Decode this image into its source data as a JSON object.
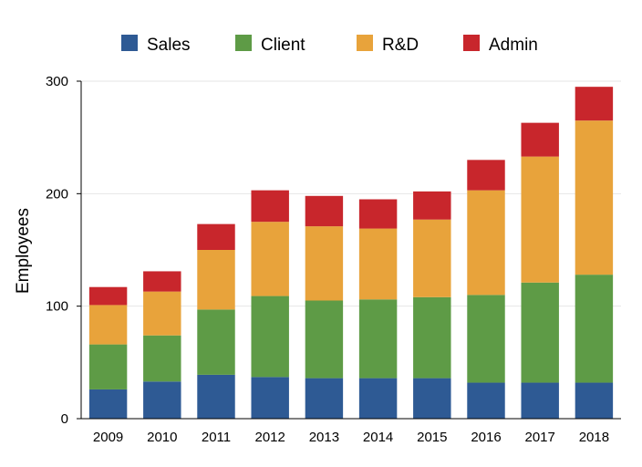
{
  "chart_data": {
    "type": "bar",
    "stacked": true,
    "title": "",
    "xlabel": "",
    "ylabel": "Employees",
    "ylim": [
      0,
      300
    ],
    "yticks": [
      0,
      100,
      200,
      300
    ],
    "grid": true,
    "legend_position": "top",
    "categories": [
      "2009",
      "2010",
      "2011",
      "2012",
      "2013",
      "2014",
      "2015",
      "2016",
      "2017",
      "2018"
    ],
    "series": [
      {
        "name": "Sales",
        "color": "#2e5a94",
        "values": [
          26,
          33,
          39,
          37,
          36,
          36,
          36,
          32,
          32,
          32
        ]
      },
      {
        "name": "Client",
        "color": "#5e9b46",
        "values": [
          40,
          41,
          58,
          72,
          69,
          70,
          72,
          78,
          89,
          96
        ]
      },
      {
        "name": "R&D",
        "color": "#e8a33b",
        "values": [
          35,
          39,
          53,
          66,
          66,
          63,
          69,
          93,
          112,
          137
        ]
      },
      {
        "name": "Admin",
        "color": "#c8262c",
        "values": [
          16,
          18,
          23,
          28,
          27,
          26,
          25,
          27,
          30,
          30
        ]
      }
    ]
  }
}
